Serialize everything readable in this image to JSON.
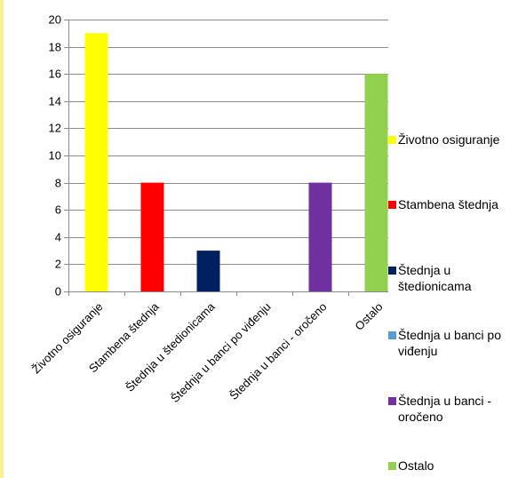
{
  "chart_data": {
    "type": "bar",
    "categories": [
      "Životno osiguranje",
      "Stambena štednja",
      "Štednja u štedionicama",
      "Štednja u banci po viđenju",
      "Štednja u banci - oročeno",
      "Ostalo"
    ],
    "values": [
      19,
      8,
      3,
      0,
      8,
      16
    ],
    "colors": [
      "#ffff00",
      "#ff0000",
      "#002060",
      "#5b9bd5",
      "#7030a0",
      "#92d050"
    ],
    "ylim": [
      0,
      20
    ],
    "yticks": [
      "0",
      "2",
      "4",
      "6",
      "8",
      "10",
      "12",
      "14",
      "16",
      "18",
      "20"
    ],
    "grid": true,
    "legend": "right",
    "legend_entries": [
      "Životno osiguranje",
      "Stambena štednja",
      "Štednja u štedionicama",
      "Štednja u banci po viđenju",
      "Štednja u banci - oročeno",
      "Ostalo"
    ],
    "title": "",
    "xlabel": "",
    "ylabel": ""
  }
}
